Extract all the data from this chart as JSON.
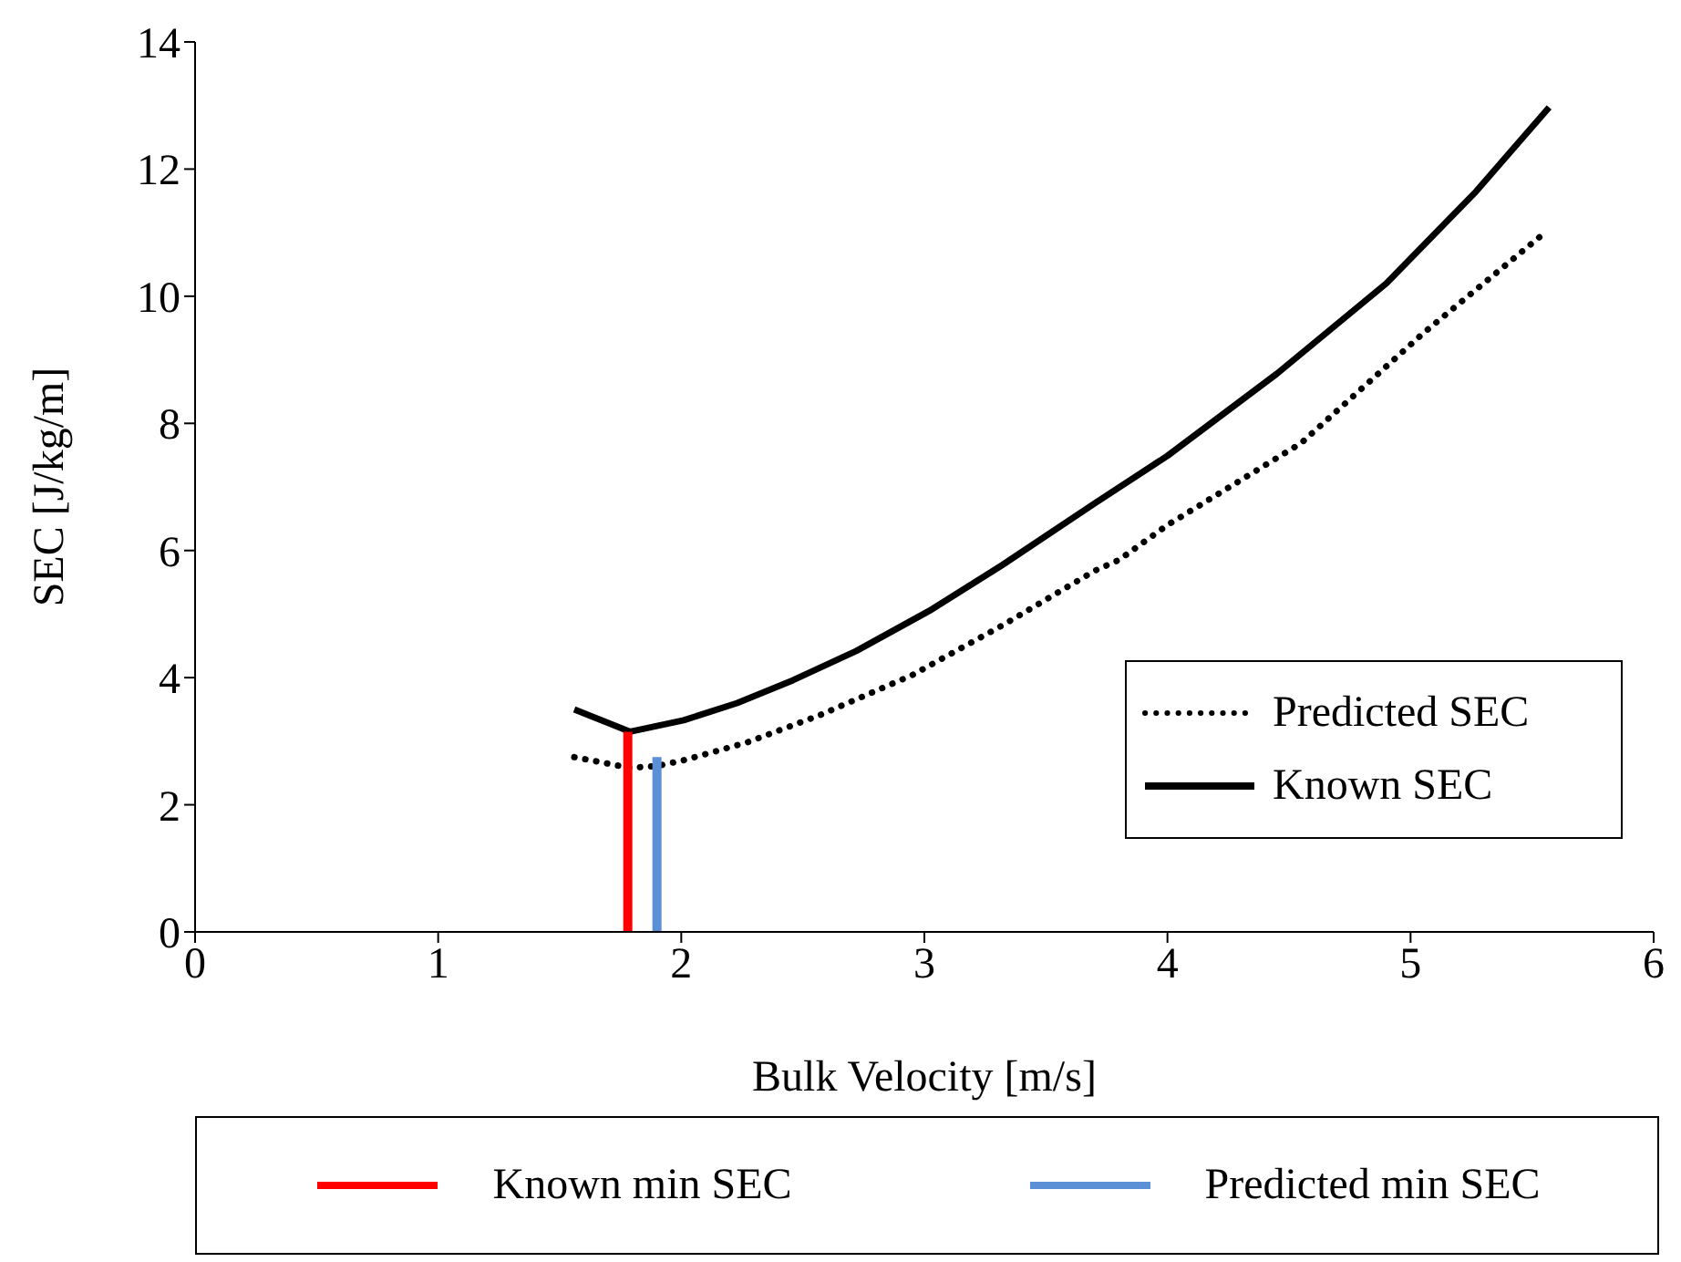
{
  "chart_data": {
    "type": "line",
    "xlabel": "Bulk Velocity [m/s]",
    "ylabel": "SEC [J/kg/m]",
    "xlim": [
      0,
      6
    ],
    "xticks": [
      0,
      1,
      2,
      3,
      4,
      5,
      6
    ],
    "ylim": [
      0,
      14
    ],
    "yticks": [
      0,
      2,
      4,
      6,
      8,
      10,
      12,
      14
    ],
    "grid": false,
    "legend": "bottom right",
    "series": [
      {
        "name": "Predicted SEC",
        "color": "#000000",
        "line_style": "dotted",
        "x": [
          1.56,
          1.79,
          1.9,
          2.01,
          2.27,
          2.57,
          2.95,
          3.32,
          3.7,
          3.8,
          4.0,
          4.55,
          5.05,
          5.54
        ],
        "values": [
          2.75,
          2.58,
          2.61,
          2.7,
          2.98,
          3.41,
          4.04,
          4.82,
          5.68,
          5.85,
          6.4,
          7.69,
          9.41,
          10.96
        ]
      },
      {
        "name": "Known SEC",
        "color": "#000000",
        "line_style": "solid",
        "x": [
          1.56,
          1.79,
          2.01,
          2.23,
          2.46,
          2.72,
          3.02,
          3.32,
          3.7,
          4.0,
          4.45,
          4.9,
          5.27,
          5.57
        ],
        "values": [
          3.5,
          3.15,
          3.33,
          3.6,
          3.96,
          4.42,
          5.05,
          5.77,
          6.74,
          7.49,
          8.78,
          10.2,
          11.65,
          12.97
        ]
      },
      {
        "name": "Known min SEC",
        "color": "#ff0000",
        "line_style": "solid",
        "x": [
          1.78,
          1.78
        ],
        "values": [
          0,
          3.15
        ]
      },
      {
        "name": "Predicted min SEC",
        "color": "#5b8fd6",
        "line_style": "solid",
        "x": [
          1.9,
          1.9
        ],
        "values": [
          0,
          2.75
        ]
      }
    ]
  }
}
